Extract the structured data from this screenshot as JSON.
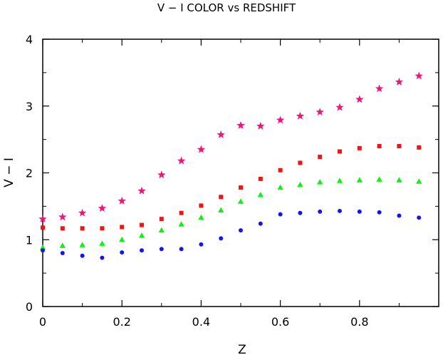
{
  "chart_data": {
    "type": "scatter",
    "title": "V − I COLOR vs REDSHIFT",
    "xlabel": "Z",
    "ylabel": "V − I",
    "xlim": [
      0,
      1.0
    ],
    "ylim": [
      0,
      4
    ],
    "xticks": [
      0,
      0.2,
      0.4,
      0.6,
      0.8
    ],
    "xtick_labels": [
      "0",
      "0.2",
      "0.4",
      "0.6",
      "0.8"
    ],
    "yticks": [
      0,
      1,
      2,
      3,
      4
    ],
    "ytick_labels": [
      "0",
      "1",
      "2",
      "3",
      "4"
    ],
    "grid": false,
    "x": [
      0,
      0.05,
      0.1,
      0.15,
      0.2,
      0.25,
      0.3,
      0.35,
      0.4,
      0.45,
      0.5,
      0.55,
      0.6,
      0.65,
      0.7,
      0.75,
      0.8,
      0.85,
      0.9,
      0.95
    ],
    "series": [
      {
        "marker": "star",
        "color": "#f0147c",
        "values": [
          1.31,
          1.34,
          1.4,
          1.47,
          1.58,
          1.73,
          1.97,
          2.18,
          2.35,
          2.57,
          2.71,
          2.7,
          2.79,
          2.85,
          2.91,
          2.98,
          3.1,
          3.26,
          3.36,
          3.45
        ]
      },
      {
        "marker": "square",
        "color": "#f01414",
        "values": [
          1.18,
          1.17,
          1.17,
          1.17,
          1.19,
          1.22,
          1.31,
          1.4,
          1.51,
          1.64,
          1.78,
          1.91,
          2.04,
          2.15,
          2.24,
          2.32,
          2.37,
          2.4,
          2.4,
          2.38
        ]
      },
      {
        "marker": "triangle",
        "color": "#14f014",
        "values": [
          0.88,
          0.91,
          0.92,
          0.94,
          1.0,
          1.06,
          1.14,
          1.23,
          1.33,
          1.44,
          1.57,
          1.67,
          1.78,
          1.82,
          1.86,
          1.88,
          1.89,
          1.9,
          1.89,
          1.87
        ]
      },
      {
        "marker": "circle",
        "color": "#1414f0",
        "values": [
          0.84,
          0.8,
          0.76,
          0.73,
          0.81,
          0.84,
          0.86,
          0.86,
          0.93,
          1.02,
          1.14,
          1.24,
          1.38,
          1.4,
          1.42,
          1.43,
          1.42,
          1.41,
          1.36,
          1.33
        ]
      }
    ]
  }
}
